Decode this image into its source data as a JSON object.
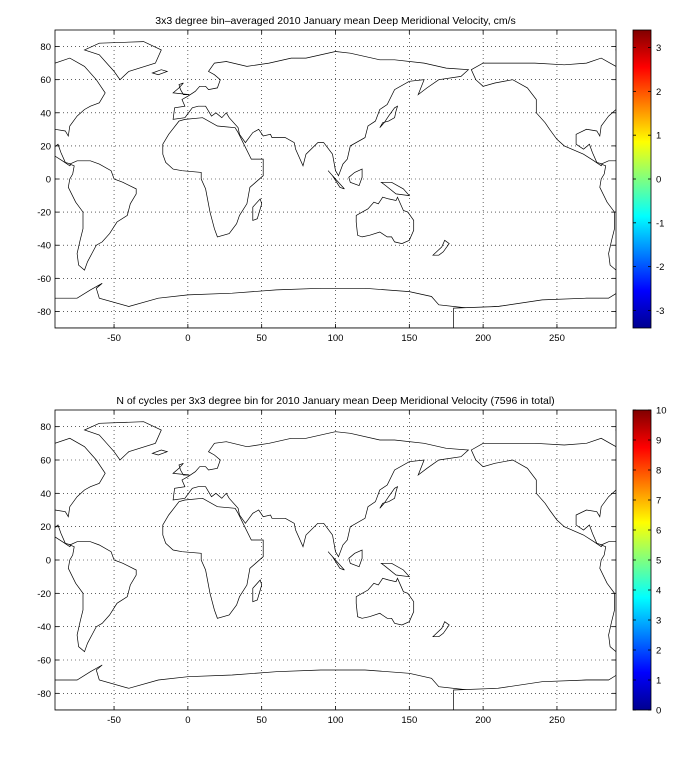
{
  "chart_data": [
    {
      "type": "heatmap",
      "title": "3x3 degree bin–averaged 2010 January mean Deep Meridional Velocity, cm/s",
      "xlabel": "",
      "ylabel": "",
      "xlim": [
        -90,
        290
      ],
      "ylim": [
        -90,
        90
      ],
      "xticks": [
        -50,
        0,
        50,
        100,
        150,
        200,
        250
      ],
      "yticks": [
        -80,
        -60,
        -40,
        -20,
        0,
        20,
        40,
        60,
        80
      ],
      "grid": true,
      "bin_size_deg": 3,
      "colorbar": {
        "colormap": "jet",
        "range": [
          -3.4,
          3.4
        ],
        "ticks": [
          -3,
          -2,
          -1,
          0,
          1,
          2,
          3
        ]
      },
      "data_note": "bin values are colour cells over the ocean; individual bin values are not labelled",
      "values": []
    },
    {
      "type": "heatmap",
      "title": "N of cycles per 3x3 degree bin for 2010 January mean Deep Meridional Velocity (7596 in total)",
      "xlabel": "",
      "ylabel": "",
      "xlim": [
        -90,
        290
      ],
      "ylim": [
        -90,
        90
      ],
      "xticks": [
        -50,
        0,
        50,
        100,
        150,
        200,
        250
      ],
      "yticks": [
        -80,
        -60,
        -40,
        -20,
        0,
        20,
        40,
        60,
        80
      ],
      "grid": true,
      "bin_size_deg": 3,
      "total_cycles": 7596,
      "colorbar": {
        "colormap": "jet",
        "range": [
          0,
          10
        ],
        "ticks": [
          0,
          1,
          2,
          3,
          4,
          5,
          6,
          7,
          8,
          9,
          10
        ]
      },
      "data_note": "bin counts are colour cells over the ocean; individual counts are not labelled",
      "values": []
    }
  ]
}
